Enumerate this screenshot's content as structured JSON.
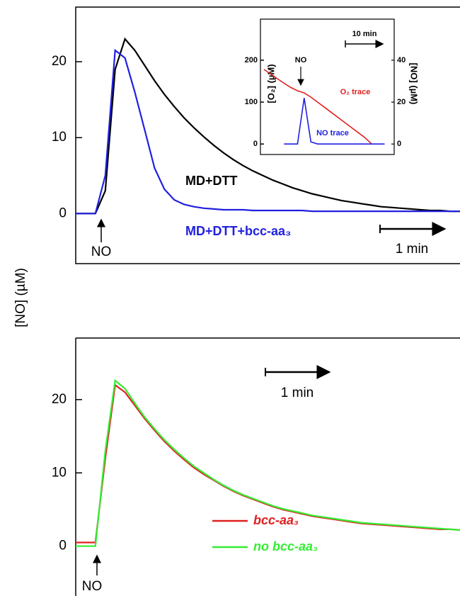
{
  "chart_data": [
    {
      "type": "line",
      "ylabel": "[NO] (µM)",
      "ylim": [
        -6.6,
        27.2
      ],
      "yticks": [
        0,
        10,
        20
      ],
      "annotations": [
        "NO",
        "1 min"
      ],
      "series": [
        {
          "name": "MD+DTT",
          "color": "#000000",
          "values": [
            0,
            0,
            0,
            3,
            19,
            23,
            21.5,
            19.5,
            17.5,
            15.7,
            14.1,
            12.6,
            11.3,
            10.1,
            9.0,
            8.0,
            7.1,
            6.3,
            5.6,
            5.0,
            4.4,
            3.9,
            3.4,
            3.0,
            2.6,
            2.3,
            2.0,
            1.7,
            1.5,
            1.3,
            1.1,
            0.9,
            0.8,
            0.7,
            0.6,
            0.5,
            0.4,
            0.4,
            0.3,
            0.3
          ]
        },
        {
          "name": "MD+DTT+bcc-aa₃",
          "color": "#2020e0",
          "values": [
            0,
            0,
            0,
            5,
            21.5,
            20.5,
            16,
            11,
            6,
            3.2,
            1.8,
            1.2,
            0.9,
            0.7,
            0.6,
            0.5,
            0.5,
            0.5,
            0.4,
            0.4,
            0.4,
            0.4,
            0.4,
            0.4,
            0.3,
            0.3,
            0.3,
            0.3,
            0.3,
            0.3,
            0.3,
            0.3,
            0.3,
            0.3,
            0.3,
            0.3,
            0.3,
            0.3,
            0.3,
            0.3
          ]
        }
      ]
    },
    {
      "type": "line",
      "ylabel": "[O₂] (µM)",
      "y2label": "[NO] (µM)",
      "ylim": [
        -25,
        298
      ],
      "yticks": [
        0,
        100,
        200
      ],
      "y2lim": [
        -5,
        59.6
      ],
      "y2ticks": [
        0,
        20,
        40
      ],
      "annotations": [
        "NO",
        "10 min",
        "O₂ trace",
        "NO trace"
      ],
      "series": [
        {
          "name": "O₂ trace",
          "color": "#e02020",
          "values": [
            178,
            167,
            156,
            145,
            135,
            127,
            122,
            112,
            100,
            88,
            76,
            64,
            52,
            40,
            28,
            16,
            1,
            null,
            null,
            null
          ]
        },
        {
          "name": "NO trace",
          "color": "#2020e0",
          "axis": "y2",
          "values": [
            null,
            null,
            null,
            0,
            0,
            0,
            22,
            1,
            0,
            0,
            0,
            0,
            0,
            0,
            0,
            0,
            0,
            0,
            0,
            null
          ]
        }
      ]
    },
    {
      "type": "line",
      "ylim": [
        -6.8,
        28.4
      ],
      "yticks": [
        0,
        10,
        20
      ],
      "annotations": [
        "1 min",
        "NO"
      ],
      "series": [
        {
          "name": "bcc-aa₃",
          "color": "#e02020",
          "values": [
            0.5,
            0.5,
            0.5,
            12,
            22,
            21,
            19.2,
            17.4,
            15.8,
            14.3,
            13.0,
            11.8,
            10.7,
            9.8,
            9.0,
            8.2,
            7.5,
            6.9,
            6.4,
            5.9,
            5.4,
            5.0,
            4.7,
            4.4,
            4.1,
            3.9,
            3.7,
            3.5,
            3.3,
            3.1,
            3.0,
            2.9,
            2.8,
            2.7,
            2.6,
            2.5,
            2.4,
            2.3,
            2.3,
            2.2
          ]
        },
        {
          "name": "no bcc-aa₃",
          "color": "#33ee33",
          "values": [
            0,
            0,
            0,
            13,
            22.6,
            21.5,
            19.5,
            17.6,
            16.0,
            14.5,
            13.2,
            12.0,
            10.9,
            10.0,
            9.1,
            8.3,
            7.6,
            7.0,
            6.5,
            6.0,
            5.5,
            5.1,
            4.8,
            4.5,
            4.2,
            4.0,
            3.8,
            3.6,
            3.4,
            3.2,
            3.1,
            3.0,
            2.9,
            2.8,
            2.7,
            2.6,
            2.5,
            2.4,
            2.3,
            2.2
          ]
        }
      ]
    }
  ]
}
